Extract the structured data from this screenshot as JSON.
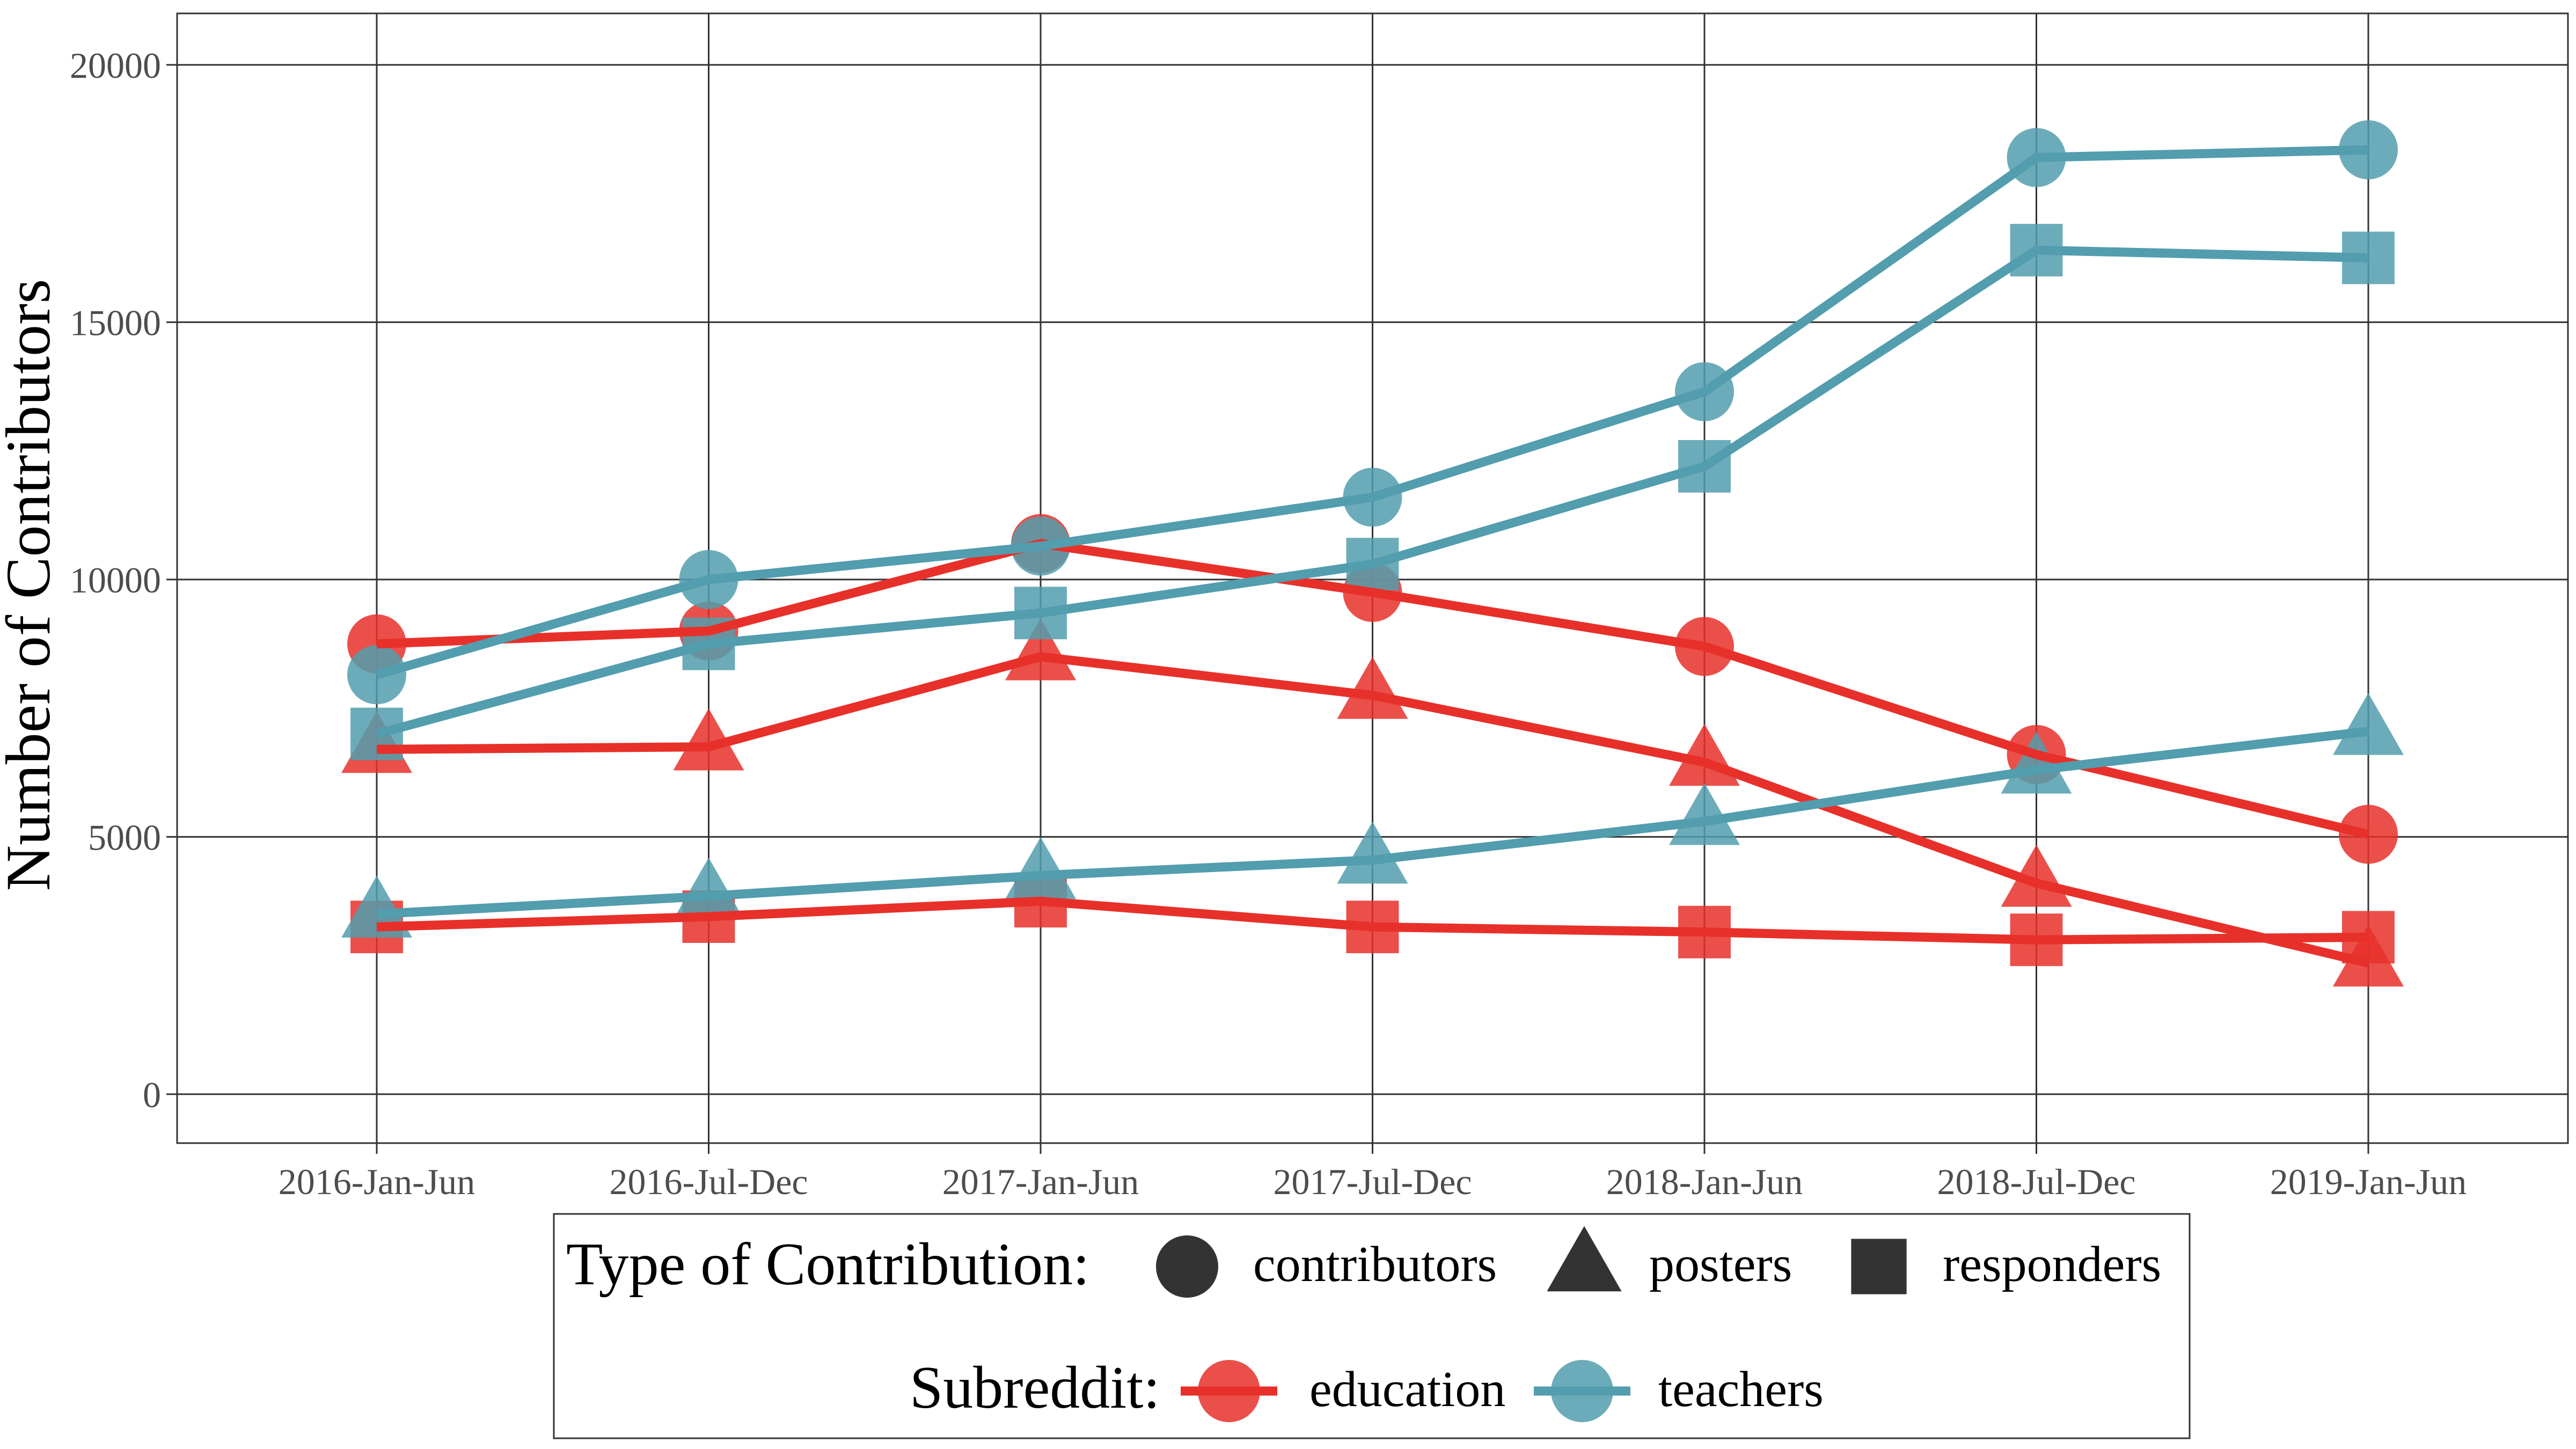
{
  "chart_data": {
    "type": "line",
    "ylabel": "Number of Contributors",
    "xlabel": "",
    "categories": [
      "2016-Jan-Jun",
      "2016-Jul-Dec",
      "2017-Jan-Jun",
      "2017-Jul-Dec",
      "2018-Jan-Jun",
      "2018-Jul-Dec",
      "2019-Jan-Jun"
    ],
    "ylim": [
      -950,
      21000
    ],
    "yticks": [
      0,
      5000,
      10000,
      15000,
      20000
    ],
    "grid": true,
    "legend_position": "bottom",
    "series": [
      {
        "subreddit": "education",
        "type": "contributors",
        "values": [
          8750,
          9000,
          10700,
          9750,
          8700,
          6600,
          5050
        ]
      },
      {
        "subreddit": "education",
        "type": "posters",
        "values": [
          6700,
          6750,
          8500,
          7750,
          6450,
          4100,
          2550
        ]
      },
      {
        "subreddit": "education",
        "type": "responders",
        "values": [
          3250,
          3450,
          3750,
          3250,
          3150,
          3000,
          3050
        ]
      },
      {
        "subreddit": "teachers",
        "type": "contributors",
        "values": [
          8150,
          10000,
          10650,
          11600,
          13650,
          18200,
          18350
        ]
      },
      {
        "subreddit": "teachers",
        "type": "posters",
        "values": [
          3500,
          3850,
          4250,
          4550,
          5300,
          6300,
          7050
        ]
      },
      {
        "subreddit": "teachers",
        "type": "responders",
        "values": [
          7000,
          8750,
          9350,
          10300,
          12200,
          16400,
          16250
        ]
      }
    ]
  },
  "legend": {
    "shape_title": "Type of Contribution:",
    "shape_items": [
      {
        "key": "contributors",
        "label": "contributors"
      },
      {
        "key": "posters",
        "label": "posters"
      },
      {
        "key": "responders",
        "label": "responders"
      }
    ],
    "color_title": "Subreddit:",
    "color_items": [
      {
        "key": "education",
        "label": "education"
      },
      {
        "key": "teachers",
        "label": "teachers"
      }
    ]
  },
  "colors": {
    "education": "#e8302a",
    "teachers": "#529dae",
    "legend_shape": "#333333",
    "grid": "#333333",
    "panel_border": "#333333"
  }
}
